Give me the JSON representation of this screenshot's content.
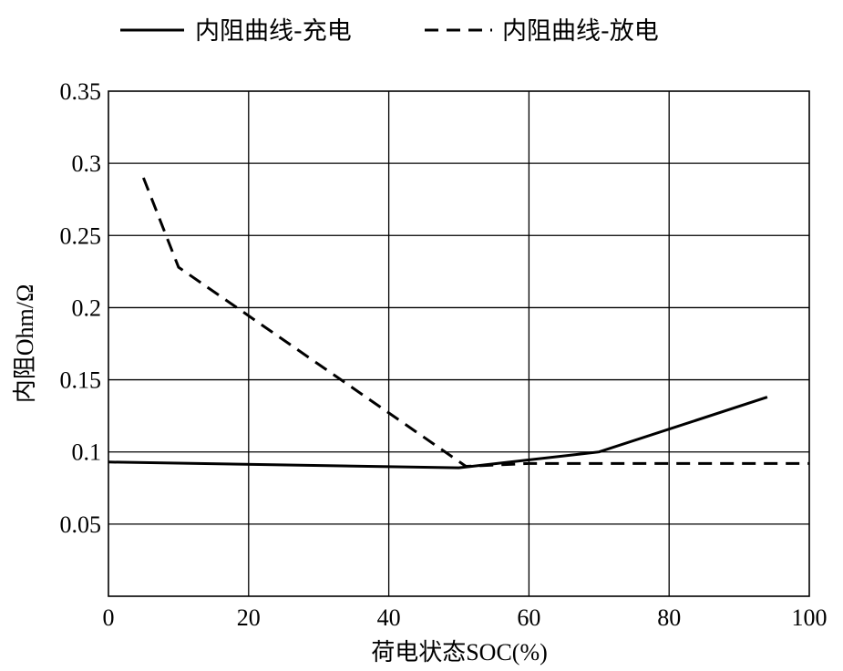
{
  "chart_data": {
    "type": "line",
    "title": "",
    "xlabel": "荷电状态SOC(%)",
    "ylabel": "内阻Ohm/Ω",
    "xlim": [
      0,
      100
    ],
    "ylim": [
      0,
      0.35
    ],
    "xticks": [
      0,
      20,
      40,
      60,
      80,
      100
    ],
    "xtick_labels": [
      "0",
      "20",
      "40",
      "60",
      "80",
      "100"
    ],
    "yticks": [
      0.05,
      0.1,
      0.15,
      0.2,
      0.25,
      0.3,
      0.35
    ],
    "ytick_labels": [
      "0.05",
      "0.1",
      "0.15",
      "0.2",
      "0.25",
      "0.3",
      "0.35"
    ],
    "grid": true,
    "legend_position": "top",
    "series": [
      {
        "name": "内阻曲线-充电",
        "style": "solid",
        "color": "#000000",
        "x": [
          0,
          50,
          70,
          94
        ],
        "y": [
          0.093,
          0.089,
          0.1,
          0.138
        ]
      },
      {
        "name": "内阻曲线-放电",
        "style": "dashed",
        "color": "#000000",
        "x": [
          5,
          10,
          51,
          60,
          100
        ],
        "y": [
          0.29,
          0.228,
          0.09,
          0.092,
          0.092
        ]
      }
    ]
  }
}
